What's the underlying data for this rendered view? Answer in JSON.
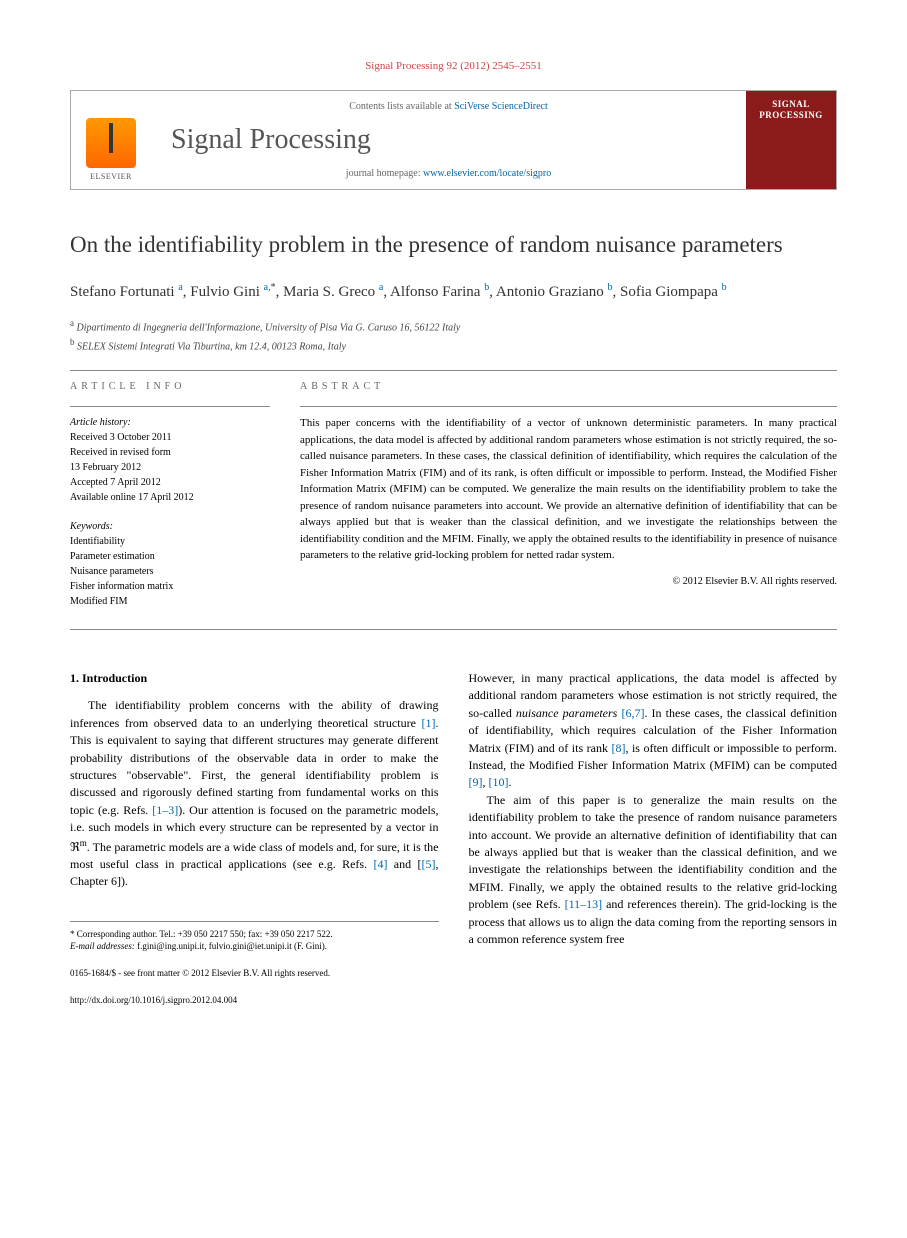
{
  "running_head": "Signal Processing 92 (2012) 2545–2551",
  "header": {
    "contents_prefix": "Contents lists available at ",
    "contents_link": "SciVerse ScienceDirect",
    "journal_title": "Signal Processing",
    "homepage_prefix": "journal homepage: ",
    "homepage_link": "www.elsevier.com/locate/sigpro",
    "publisher_label": "ELSEVIER",
    "cover_label_1": "SIGNAL",
    "cover_label_2": "PROCESSING"
  },
  "title": "On the identifiability problem in the presence of random nuisance parameters",
  "authors_html": "Stefano Fortunati <sup>a</sup>, Fulvio Gini <sup>a,</sup><sup class='ast'>*</sup>, Maria S. Greco <sup>a</sup>, Alfonso Farina <sup>b</sup>, Antonio Graziano <sup>b</sup>, Sofia Giompapa <sup>b</sup>",
  "affiliations": [
    {
      "sup": "a",
      "text": "Dipartimento di Ingegneria dell'Informazione, University of Pisa Via G. Caruso 16, 56122 Italy"
    },
    {
      "sup": "b",
      "text": "SELEX Sistemi Integrati Via Tiburtina, km 12.4, 00123 Roma, Italy"
    }
  ],
  "article_info": {
    "label": "ARTICLE INFO",
    "history_label": "Article history:",
    "history": [
      "Received 3 October 2011",
      "Received in revised form",
      "13 February 2012",
      "Accepted 7 April 2012",
      "Available online 17 April 2012"
    ],
    "keywords_label": "Keywords:",
    "keywords": [
      "Identifiability",
      "Parameter estimation",
      "Nuisance parameters",
      "Fisher information matrix",
      "Modified FIM"
    ]
  },
  "abstract": {
    "label": "ABSTRACT",
    "text": "This paper concerns with the identifiability of a vector of unknown deterministic parameters. In many practical applications, the data model is affected by additional random parameters whose estimation is not strictly required, the so-called nuisance parameters. In these cases, the classical definition of identifiability, which requires the calculation of the Fisher Information Matrix (FIM) and of its rank, is often difficult or impossible to perform. Instead, the Modified Fisher Information Matrix (MFIM) can be computed. We generalize the main results on the identifiability problem to take the presence of random nuisance parameters into account. We provide an alternative definition of identifiability that can be always applied but that is weaker than the classical definition, and we investigate the relationships between the identifiability condition and the MFIM. Finally, we apply the obtained results to the identifiability in presence of nuisance parameters to the relative grid-locking problem for netted radar system.",
    "copyright": "© 2012 Elsevier B.V. All rights reserved."
  },
  "body": {
    "sec1_head": "1. Introduction",
    "col1_p1": "The identifiability problem concerns with the ability of drawing inferences from observed data to an underlying theoretical structure <span class='ref'>[1]</span>. This is equivalent to saying that different structures may generate different probability distributions of the observable data in order to make the structures \"observable\". First, the general identifiability problem is discussed and rigorously defined starting from fundamental works on this topic (e.g. Refs. <span class='ref'>[1–3]</span>). Our attention is focused on the parametric models, i.e. such models in which every structure can be represented by a vector in ℜ<sup>m</sup>. The parametric models are a wide class of models and, for sure, it is the most useful class in practical applications (see e.g. Refs. <span class='ref'>[4]</span> and [<span class='ref'>[5]</span>, Chapter 6]).",
    "col2_p1": "However, in many practical applications, the data model is affected by additional random parameters whose estimation is not strictly required, the so-called <i>nuisance parameters</i> <span class='ref'>[6,7]</span>. In these cases, the classical definition of identifiability, which requires calculation of the Fisher Information Matrix (FIM) and of its rank <span class='ref'>[8]</span>, is often difficult or impossible to perform. Instead, the Modified Fisher Information Matrix (MFIM) can be computed <span class='ref'>[9]</span>, <span class='ref'>[10]</span>.",
    "col2_p2": "The aim of this paper is to generalize the main results on the identifiability problem to take the presence of random nuisance parameters into account. We provide an alternative definition of identifiability that can be always applied but that is weaker than the classical definition, and we investigate the relationships between the identifiability condition and the MFIM. Finally, we apply the obtained results to the relative grid-locking problem (see Refs. <span class='ref'>[11–13]</span> and references therein). The grid-locking is the process that allows us to align the data coming from the reporting sensors in a common reference system free"
  },
  "footnote": {
    "corr": "* Corresponding author. Tel.: +39 050 2217 550; fax: +39 050 2217 522.",
    "email_label": "E-mail addresses:",
    "emails": " f.gini@ing.unipi.it, fulvio.gini@iet.unipi.it (F. Gini)."
  },
  "footer": {
    "line1": "0165-1684/$ - see front matter © 2012 Elsevier B.V. All rights reserved.",
    "line2": "http://dx.doi.org/10.1016/j.sigpro.2012.04.004"
  },
  "colors": {
    "link": "#0066aa",
    "running_head": "#c44",
    "journal_cover": "#8b1a1a",
    "elsevier_orange": "#f60"
  }
}
